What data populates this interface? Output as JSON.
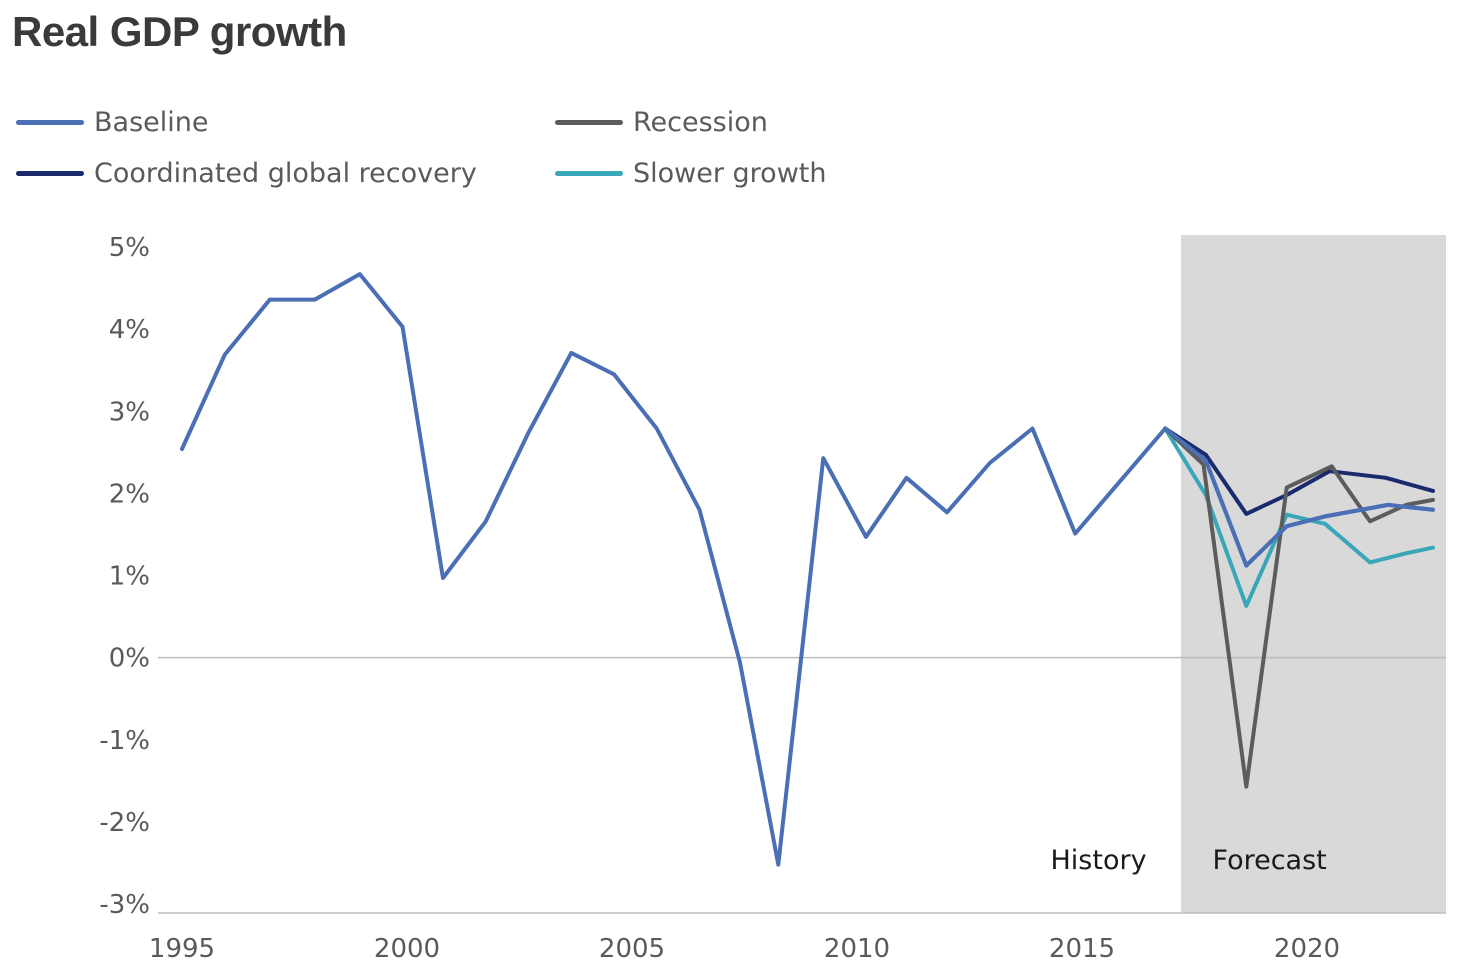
{
  "title": "Real GDP growth",
  "legend": {
    "items": [
      {
        "label": "Baseline",
        "color": "#4a6fb5"
      },
      {
        "label": "Recession",
        "color": "#5c5c5c"
      },
      {
        "label": "Coordinated global recovery",
        "color": "#1a2a6c"
      },
      {
        "label": "Slower growth",
        "color": "#3aa6b9"
      }
    ]
  },
  "chart_data": {
    "type": "line",
    "title": "Real GDP growth",
    "xlabel": "",
    "ylabel": "",
    "xlim": [
      1994.4,
      2023.0
    ],
    "ylim": [
      -3,
      5
    ],
    "x_ticks": [
      1995,
      2000,
      2005,
      2010,
      2015,
      2020
    ],
    "y_ticks": [
      5,
      4,
      3,
      2,
      1,
      0,
      -1,
      -2,
      -3
    ],
    "y_tick_labels": [
      "5%",
      "4%",
      "3%",
      "2%",
      "1%",
      "0%",
      "-1%",
      "-2%",
      "-3%"
    ],
    "grid": false,
    "zero_line": true,
    "legend_position": "top-left",
    "forecast_region": {
      "start": 2017.2,
      "end": 2023.0,
      "color": "#d9d9d9"
    },
    "annotations": [
      {
        "text": "History",
        "x": 2014.3,
        "y": -2.45
      },
      {
        "text": "Forecast",
        "x": 2017.9,
        "y": -2.45
      }
    ],
    "series": [
      {
        "name": "Baseline",
        "color": "#4a6fb5",
        "points": [
          [
            1995.0,
            2.54
          ],
          [
            1995.95,
            3.69
          ],
          [
            1996.95,
            4.36
          ],
          [
            1997.95,
            4.36
          ],
          [
            1998.95,
            4.67
          ],
          [
            1999.9,
            4.03
          ],
          [
            2000.8,
            0.97
          ],
          [
            2001.75,
            1.66
          ],
          [
            2002.7,
            2.74
          ],
          [
            2003.65,
            3.71
          ],
          [
            2004.6,
            3.45
          ],
          [
            2005.55,
            2.79
          ],
          [
            2006.5,
            1.8
          ],
          [
            2007.4,
            -0.06
          ],
          [
            2008.25,
            -2.52
          ],
          [
            2009.25,
            2.43
          ],
          [
            2010.2,
            1.47
          ],
          [
            2011.1,
            2.19
          ],
          [
            2012.0,
            1.77
          ],
          [
            2012.95,
            2.37
          ],
          [
            2013.9,
            2.79
          ],
          [
            2014.85,
            1.51
          ],
          [
            2015.85,
            2.15
          ],
          [
            2016.85,
            2.79
          ],
          [
            2017.75,
            2.4
          ],
          [
            2018.65,
            1.12
          ],
          [
            2019.55,
            1.6
          ],
          [
            2020.4,
            1.72
          ],
          [
            2021.8,
            1.86
          ],
          [
            2022.8,
            1.8
          ]
        ]
      },
      {
        "name": "Recession",
        "color": "#5c5c5c",
        "points": [
          [
            2016.85,
            2.79
          ],
          [
            2017.7,
            2.35
          ],
          [
            2018.65,
            -1.57
          ],
          [
            2019.55,
            2.07
          ],
          [
            2020.55,
            2.33
          ],
          [
            2021.4,
            1.66
          ],
          [
            2022.2,
            1.86
          ],
          [
            2022.8,
            1.92
          ]
        ]
      },
      {
        "name": "Coordinated global recovery",
        "color": "#1a2a6c",
        "points": [
          [
            2016.85,
            2.79
          ],
          [
            2017.75,
            2.47
          ],
          [
            2018.65,
            1.75
          ],
          [
            2019.55,
            1.98
          ],
          [
            2020.5,
            2.27
          ],
          [
            2021.75,
            2.19
          ],
          [
            2022.8,
            2.03
          ]
        ]
      },
      {
        "name": "Slower growth",
        "color": "#3aa6b9",
        "points": [
          [
            2016.85,
            2.79
          ],
          [
            2017.75,
            1.98
          ],
          [
            2018.65,
            0.63
          ],
          [
            2019.55,
            1.74
          ],
          [
            2020.4,
            1.63
          ],
          [
            2021.4,
            1.16
          ],
          [
            2022.2,
            1.27
          ],
          [
            2022.8,
            1.34
          ]
        ]
      }
    ]
  }
}
